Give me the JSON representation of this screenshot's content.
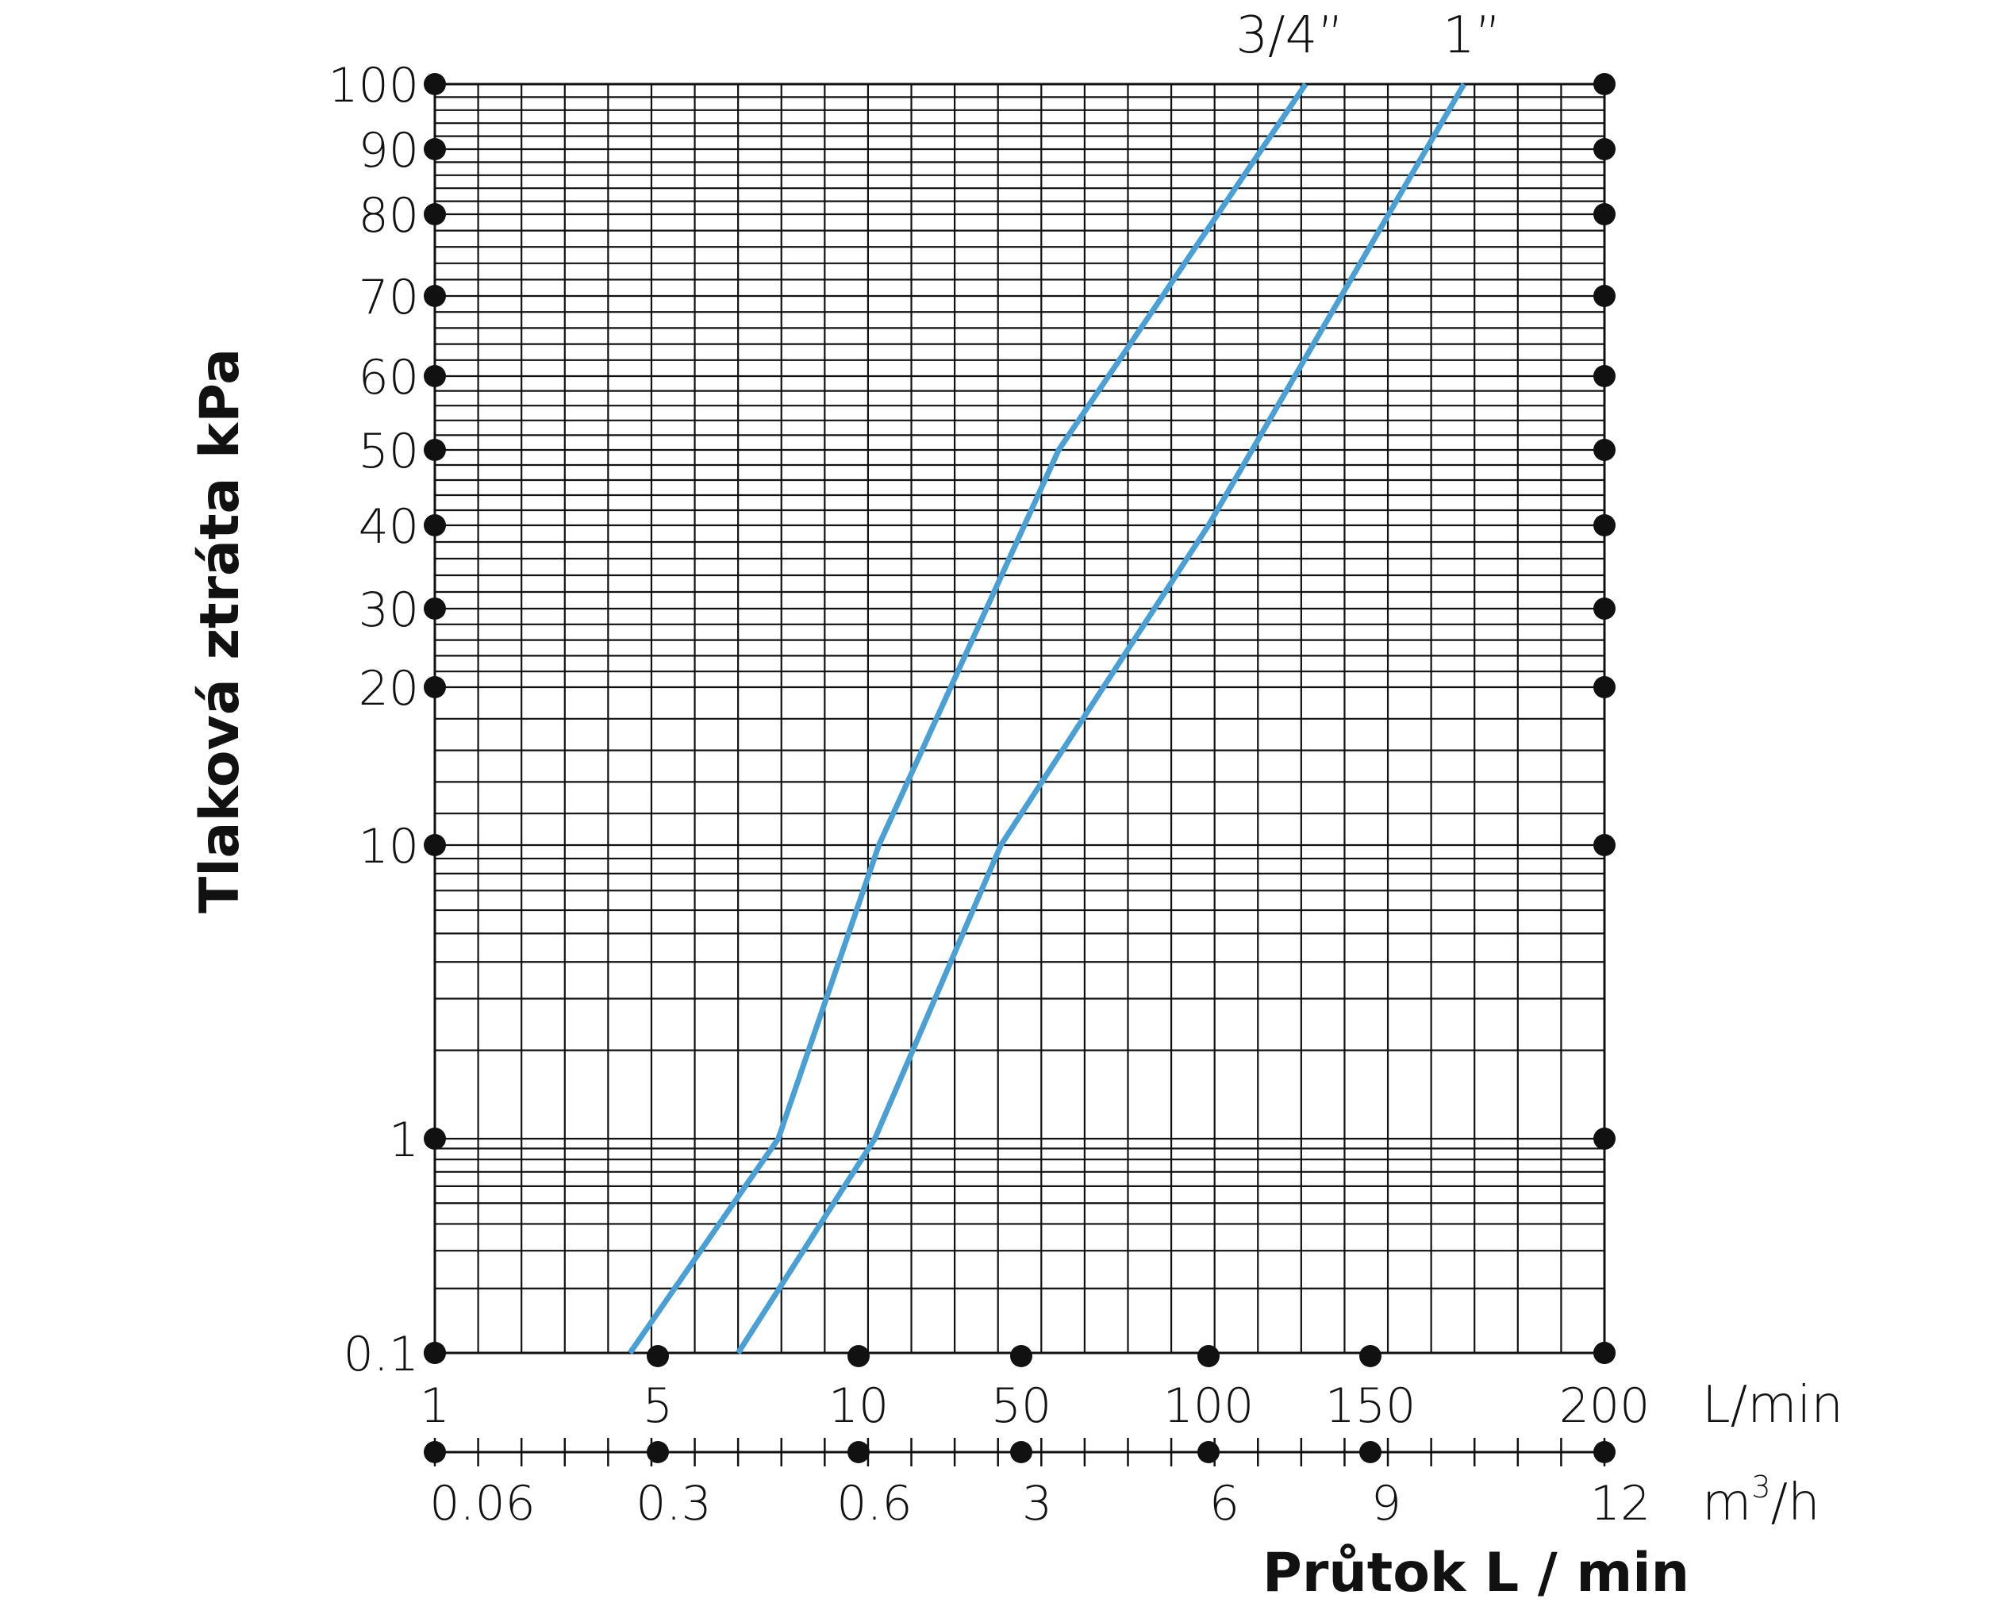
{
  "chart_data": {
    "type": "line",
    "title": "",
    "ylabel": "Tlaková ztráta kPa",
    "xlabel": "Průtok L / min",
    "y_scale": "nonuniform",
    "y_ticks": [
      "100",
      "90",
      "80",
      "70",
      "60",
      "50",
      "40",
      "30",
      "20",
      "10",
      "1",
      "0.1"
    ],
    "x_ticks_lmin": [
      "1",
      "5",
      "10",
      "50",
      "100",
      "150",
      "200"
    ],
    "x_unit_lmin": "L/min",
    "x_ticks_m3h": [
      "0.06",
      "0.3",
      "0.6",
      "3",
      "6",
      "9",
      "12"
    ],
    "x_unit_m3h_base": "m",
    "x_unit_m3h_sup": "3",
    "x_unit_m3h_tail": "/h",
    "grid": true,
    "series_color": "#4a9fd5",
    "series": [
      {
        "name": "3/4”",
        "points": [
          {
            "x": 4.5,
            "y": 0.1
          },
          {
            "x": 8,
            "y": 1
          },
          {
            "x": 15,
            "y": 10
          },
          {
            "x": 60,
            "y": 50
          },
          {
            "x": 130,
            "y": 100
          }
        ]
      },
      {
        "name": "1”",
        "points": [
          {
            "x": 7,
            "y": 0.1
          },
          {
            "x": 14,
            "y": 1
          },
          {
            "x": 45,
            "y": 10
          },
          {
            "x": 100,
            "y": 40
          },
          {
            "x": 170,
            "y": 100
          }
        ]
      }
    ]
  }
}
